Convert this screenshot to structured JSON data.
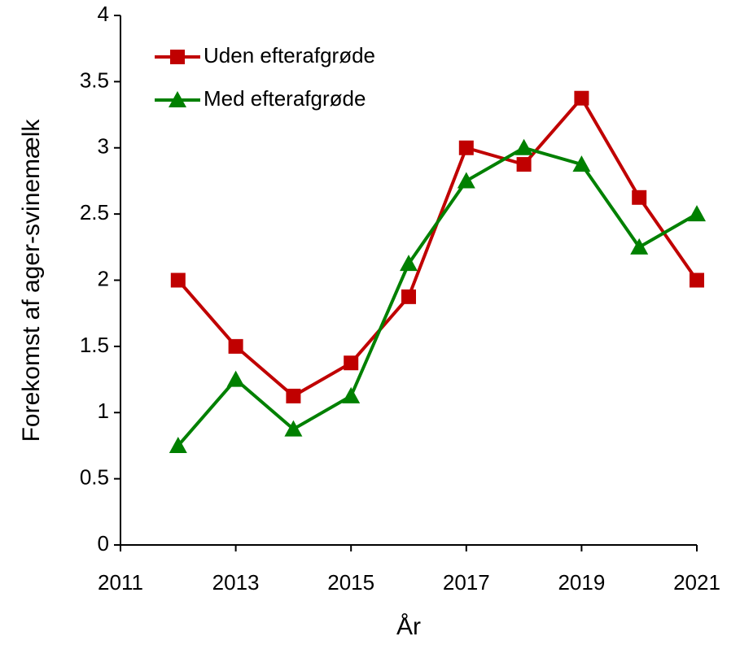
{
  "chart_data": {
    "type": "line",
    "x": [
      2012,
      2013,
      2014,
      2015,
      2016,
      2017,
      2018,
      2019,
      2020,
      2021
    ],
    "series": [
      {
        "name": "Uden efterafgrøde",
        "color": "#c00000",
        "marker": "square",
        "values": [
          2.0,
          1.5,
          1.125,
          1.375,
          1.875,
          3.0,
          2.875,
          3.375,
          2.625,
          2.0
        ]
      },
      {
        "name": "Med efterafgrøde",
        "color": "#008000",
        "marker": "triangle",
        "values": [
          0.75,
          1.25,
          0.875,
          1.125,
          2.125,
          2.75,
          3.0,
          2.875,
          2.25,
          2.5
        ]
      }
    ],
    "xlabel": "År",
    "ylabel": "Forekomst af ager-svinemælk",
    "xlim": [
      2011,
      2021
    ],
    "xticks": [
      2011,
      2013,
      2015,
      2017,
      2019,
      2021
    ],
    "ylim": [
      0,
      4
    ],
    "yticks": [
      0,
      0.5,
      1,
      1.5,
      2,
      2.5,
      3,
      3.5,
      4
    ],
    "legend": "upper left",
    "grid": false
  }
}
